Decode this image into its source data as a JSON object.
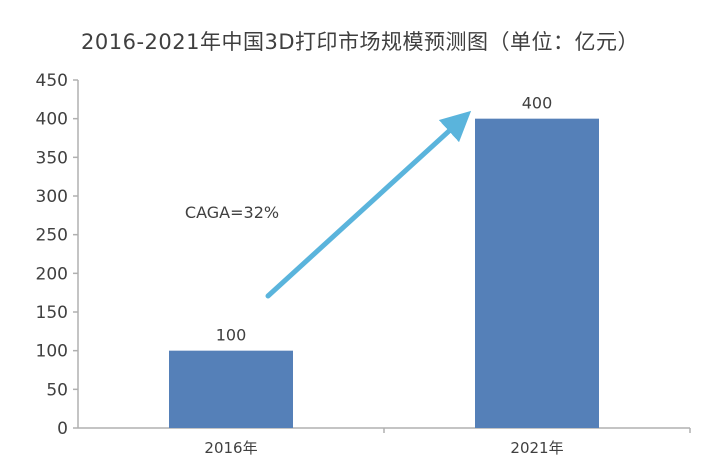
{
  "chart_data": {
    "type": "bar",
    "title": "2016-2021年中国3D打印市场规模预测图（单位：亿元）",
    "categories": [
      "2016年",
      "2021年"
    ],
    "values": [
      100,
      400
    ],
    "data_labels": [
      "100",
      "400"
    ],
    "ylim": [
      0,
      450
    ],
    "yticks": [
      "0",
      "50",
      "100",
      "150",
      "200",
      "250",
      "300",
      "350",
      "400",
      "450"
    ],
    "xlabel": "",
    "ylabel": "",
    "grid": false,
    "annotation": "CAGA=32%",
    "colors": {
      "bar": "#5580b8",
      "arrow": "#5ab4dc",
      "axis": "#b0b0b0",
      "text": "#404040"
    }
  }
}
